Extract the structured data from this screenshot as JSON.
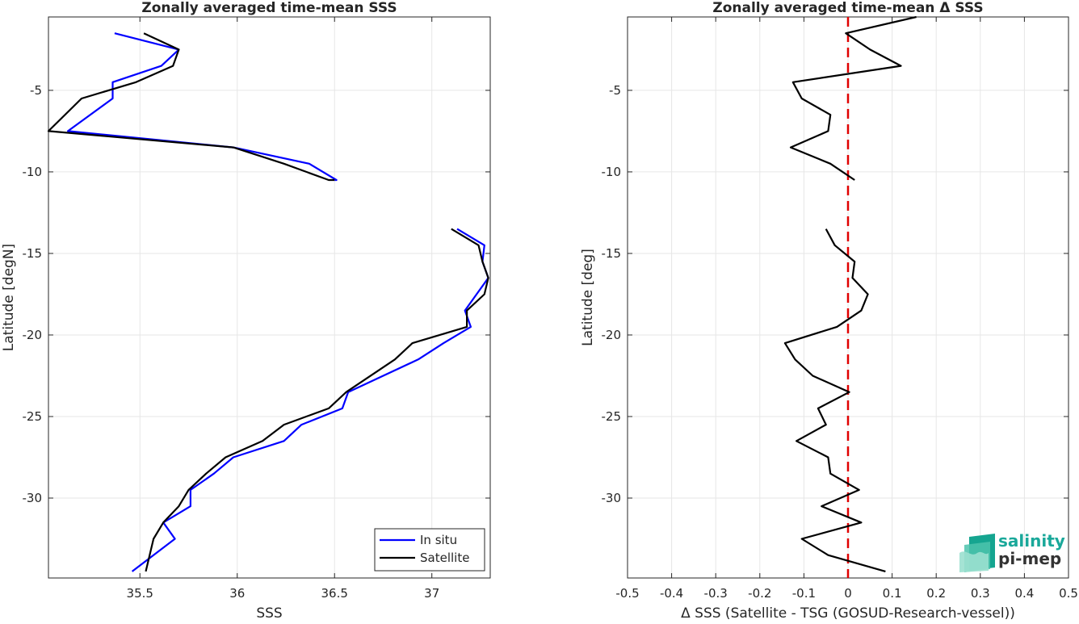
{
  "chart_data": [
    {
      "type": "line",
      "title": "Zonally averaged time-mean SSS",
      "xlabel": "SSS",
      "ylabel": "Latitude [degN]",
      "xlim": [
        35.03,
        37.3
      ],
      "ylim": [
        -34.9,
        -0.5
      ],
      "xticks": [
        "35.5",
        "36",
        "36.5",
        "37"
      ],
      "xtick_values": [
        35.5,
        36,
        36.5,
        37
      ],
      "yticks": [
        "-5",
        "-10",
        "-15",
        "-20",
        "-25",
        "-30"
      ],
      "ytick_values": [
        -5,
        -10,
        -15,
        -20,
        -25,
        -30
      ],
      "grid": true,
      "legend": "bottom-right",
      "legend_entries": [
        "In situ",
        "Satellite"
      ],
      "series": [
        {
          "name": "In situ",
          "color": "#0000ff",
          "x": [
            35.37,
            35.7,
            35.61,
            35.36,
            35.36,
            35.13,
            35.98,
            36.37,
            36.51,
            36.5
          ],
          "y": [
            -1.5,
            -2.5,
            -3.5,
            -4.5,
            -5.5,
            -7.5,
            -8.5,
            -9.5,
            -10.5,
            -10.5
          ]
        },
        {
          "name": "Satellite",
          "color": "#000000",
          "x": [
            35.52,
            35.7,
            35.67,
            35.48,
            35.2,
            35.03,
            35.98,
            36.24,
            36.47,
            36.5
          ],
          "y": [
            -1.5,
            -2.5,
            -3.5,
            -4.5,
            -5.5,
            -7.5,
            -8.5,
            -9.5,
            -10.5,
            -10.5
          ]
        },
        {
          "name": "In situ",
          "color": "#0000ff",
          "x": [
            37.13,
            37.27,
            37.26,
            37.29,
            37.23,
            37.17,
            37.2,
            37.06,
            36.93,
            36.57,
            36.54,
            36.33,
            36.24,
            35.98,
            35.88,
            35.76,
            35.76,
            35.62,
            35.68,
            35.46
          ],
          "y": [
            -13.5,
            -14.5,
            -15.5,
            -16.5,
            -17.5,
            -18.5,
            -19.5,
            -20.5,
            -21.5,
            -23.5,
            -24.5,
            -25.5,
            -26.5,
            -27.5,
            -28.5,
            -29.5,
            -30.5,
            -31.5,
            -32.5,
            -34.5
          ],
          "y_start": -13.5
        },
        {
          "name": "Satellite",
          "color": "#000000",
          "x": [
            37.1,
            37.24,
            37.26,
            37.29,
            37.27,
            37.18,
            37.18,
            36.9,
            36.81,
            36.56,
            36.47,
            36.24,
            36.13,
            35.94,
            35.84,
            35.75,
            35.7,
            35.62,
            35.57,
            35.53
          ],
          "y": [
            -13.5,
            -14.5,
            -15.5,
            -16.5,
            -17.5,
            -18.5,
            -19.5,
            -20.5,
            -21.5,
            -23.5,
            -24.5,
            -25.5,
            -26.5,
            -27.5,
            -28.5,
            -29.5,
            -30.5,
            -31.5,
            -32.5,
            -34.5
          ]
        }
      ]
    },
    {
      "type": "line",
      "title": "Zonally averaged time-mean Δ SSS",
      "xlabel": "Δ SSS (Satellite - TSG (GOSUD-Research-vessel))",
      "ylabel": "Latitude [deg]",
      "xlim": [
        -0.5,
        0.5
      ],
      "ylim": [
        -34.9,
        -0.5
      ],
      "xticks": [
        "-0.5",
        "-0.4",
        "-0.3",
        "-0.2",
        "-0.1",
        "0",
        "0.1",
        "0.2",
        "0.3",
        "0.4",
        "0.5"
      ],
      "xtick_values": [
        -0.5,
        -0.4,
        -0.3,
        -0.2,
        -0.1,
        0,
        0.1,
        0.2,
        0.3,
        0.4,
        0.5
      ],
      "yticks": [
        "-5",
        "-10",
        "-15",
        "-20",
        "-25",
        "-30"
      ],
      "ytick_values": [
        -5,
        -10,
        -15,
        -20,
        -25,
        -30
      ],
      "grid": true,
      "reference_line": {
        "x": 0,
        "color": "#e00000",
        "style": "dashed"
      },
      "series": [
        {
          "color": "#000000",
          "x": [
            0.155,
            -0.005,
            0.05,
            0.12,
            -0.125,
            -0.105,
            -0.04,
            -0.045,
            -0.13,
            -0.04,
            0.015
          ],
          "y": [
            -0.5,
            -1.5,
            -2.5,
            -3.5,
            -4.5,
            -5.5,
            -6.5,
            -7.5,
            -8.5,
            -9.5,
            -10.5
          ]
        },
        {
          "color": "#000000",
          "x": [
            -0.05,
            -0.03,
            0.015,
            0.01,
            0.045,
            0.03,
            -0.025,
            -0.143,
            -0.12,
            -0.08,
            0.003,
            -0.068,
            -0.05,
            -0.117,
            -0.045,
            -0.04,
            0.025,
            -0.06,
            0.03,
            -0.105,
            -0.045,
            0.085
          ],
          "y": [
            -13.5,
            -14.5,
            -15.5,
            -16.5,
            -17.5,
            -18.5,
            -19.5,
            -20.5,
            -21.5,
            -22.5,
            -23.5,
            -24.5,
            -25.5,
            -26.5,
            -27.5,
            -28.5,
            -29.5,
            -30.5,
            -31.5,
            -32.5,
            -33.5,
            -34.5
          ]
        }
      ]
    }
  ],
  "logo": {
    "line1": "salinity",
    "line2": "pi-mep",
    "color": "#1aa89a"
  }
}
